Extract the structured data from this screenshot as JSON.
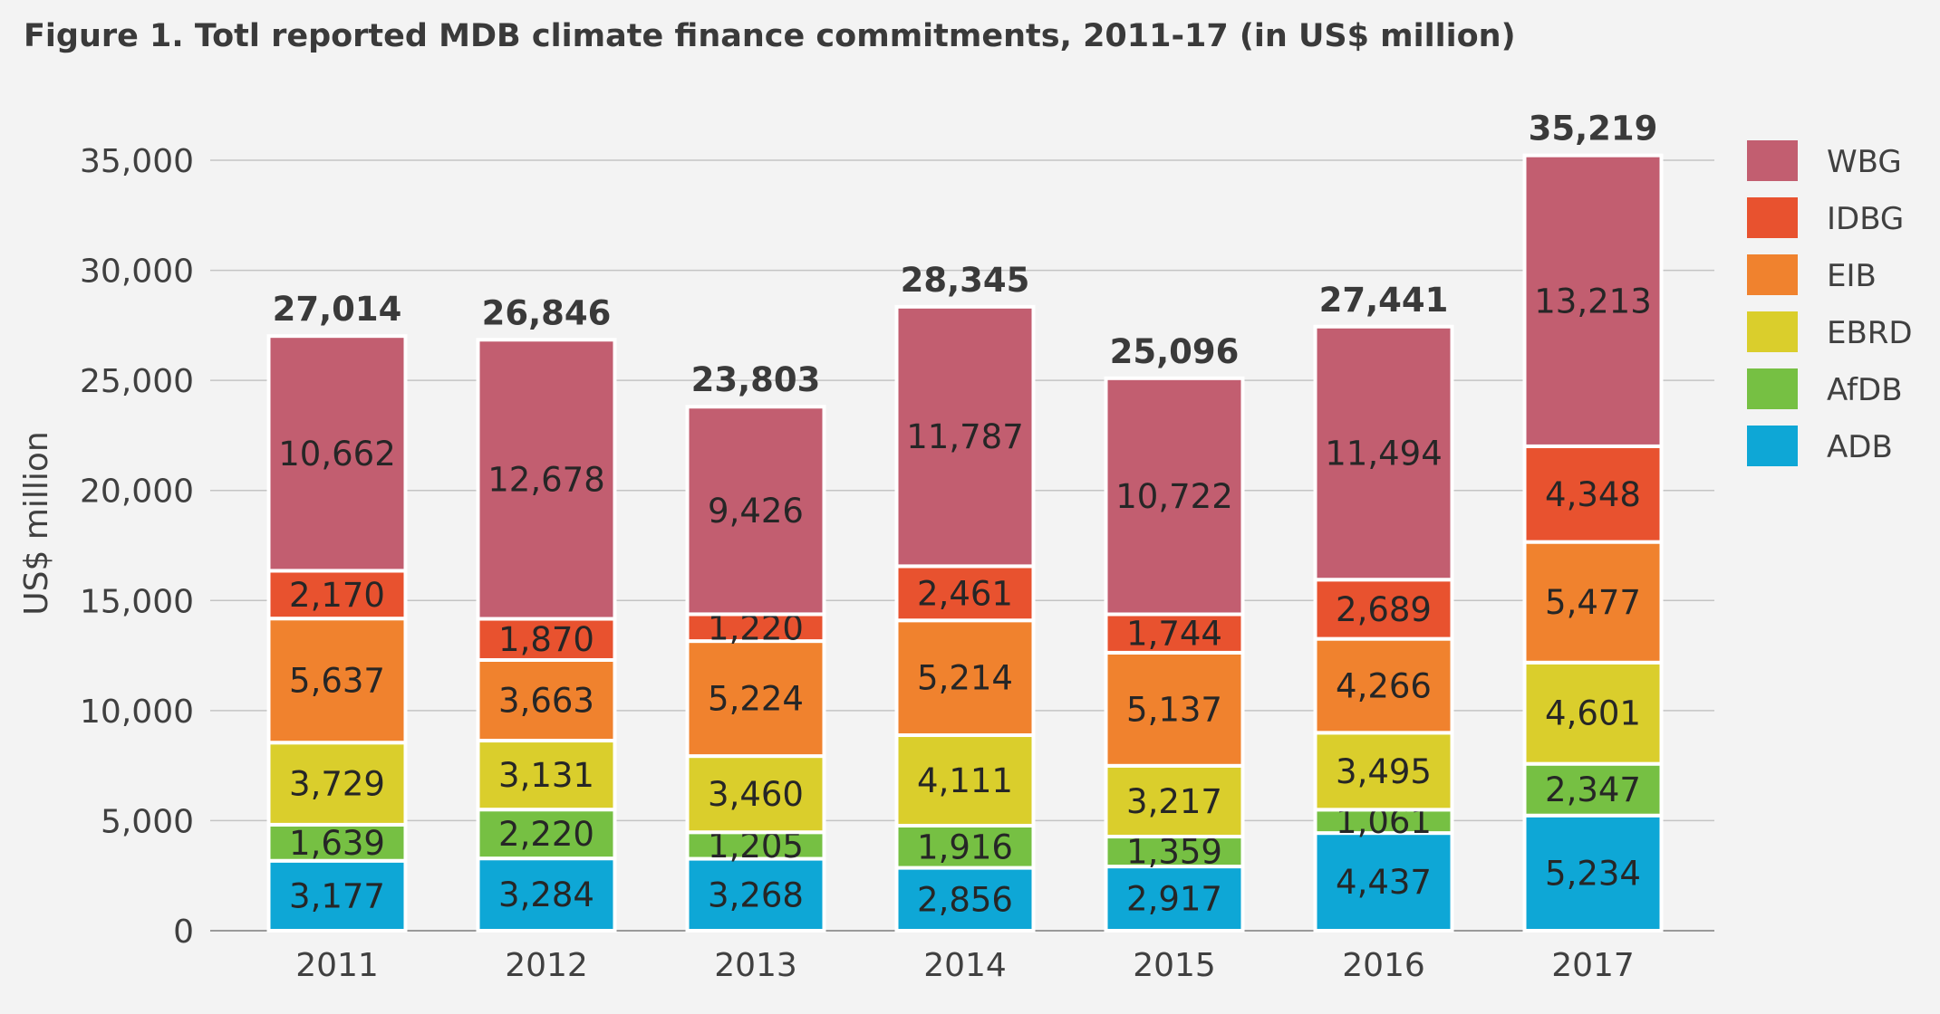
{
  "title": "Figure 1. Totl reported MDB climate finance commitments, 2011-17 (in US$ million)",
  "chart_data": {
    "type": "bar",
    "stacked": true,
    "title": "Figure 1. Totl reported MDB climate finance commitments, 2011-17 (in US$ million)",
    "xlabel": "",
    "ylabel": "US$ million",
    "ylim": [
      0,
      35000
    ],
    "yticks": [
      0,
      5000,
      10000,
      15000,
      20000,
      25000,
      30000,
      35000
    ],
    "ytick_labels": [
      "0",
      "5,000",
      "10,000",
      "15,000",
      "20,000",
      "25,000",
      "30,000",
      "35,000"
    ],
    "grid": true,
    "legend_position": "right",
    "categories": [
      "2011",
      "2012",
      "2013",
      "2014",
      "2015",
      "2016",
      "2017"
    ],
    "series": [
      {
        "name": "ADB",
        "color": "#0ea7d6",
        "values": [
          3177,
          3284,
          3268,
          2856,
          2917,
          4437,
          5234
        ],
        "labels": [
          "3,177",
          "3,284",
          "3,268",
          "2,856",
          "2,917",
          "4,437",
          "5,234"
        ]
      },
      {
        "name": "AfDB",
        "color": "#76c043",
        "values": [
          1639,
          2220,
          1205,
          1916,
          1359,
          1061,
          2347
        ],
        "labels": [
          "1,639",
          "2,220",
          "1,205",
          "1,916",
          "1,359",
          "1,061",
          "2,347"
        ]
      },
      {
        "name": "EBRD",
        "color": "#dace2c",
        "values": [
          3729,
          3131,
          3460,
          4111,
          3217,
          3495,
          4601
        ],
        "labels": [
          "3,729",
          "3,131",
          "3,460",
          "4,111",
          "3,217",
          "3,495",
          "4,601"
        ]
      },
      {
        "name": "EIB",
        "color": "#f0822e",
        "values": [
          5637,
          3663,
          5224,
          5214,
          5137,
          4266,
          5477
        ],
        "labels": [
          "5,637",
          "3,663",
          "5,224",
          "5,214",
          "5,137",
          "4,266",
          "5,477"
        ]
      },
      {
        "name": "IDBG",
        "color": "#e8522f",
        "values": [
          2170,
          1870,
          1220,
          2461,
          1744,
          2689,
          4348
        ],
        "labels": [
          "2,170",
          "1,870",
          "1,220",
          "2,461",
          "1,744",
          "2,689",
          "4,348"
        ]
      },
      {
        "name": "WBG",
        "color": "#c25e70",
        "values": [
          10662,
          12678,
          9426,
          11787,
          10722,
          11494,
          13213
        ],
        "labels": [
          "10,662",
          "12,678",
          "9,426",
          "11,787",
          "10,722",
          "11,494",
          "13,213"
        ]
      }
    ],
    "legend_order": [
      "WBG",
      "IDBG",
      "EIB",
      "EBRD",
      "AfDB",
      "ADB"
    ],
    "totals": [
      27014,
      26846,
      23803,
      28345,
      25096,
      27441,
      35219
    ],
    "total_labels": [
      "27,014",
      "26,846",
      "23,803",
      "28,345",
      "25,096",
      "27,441",
      "35,219"
    ]
  }
}
